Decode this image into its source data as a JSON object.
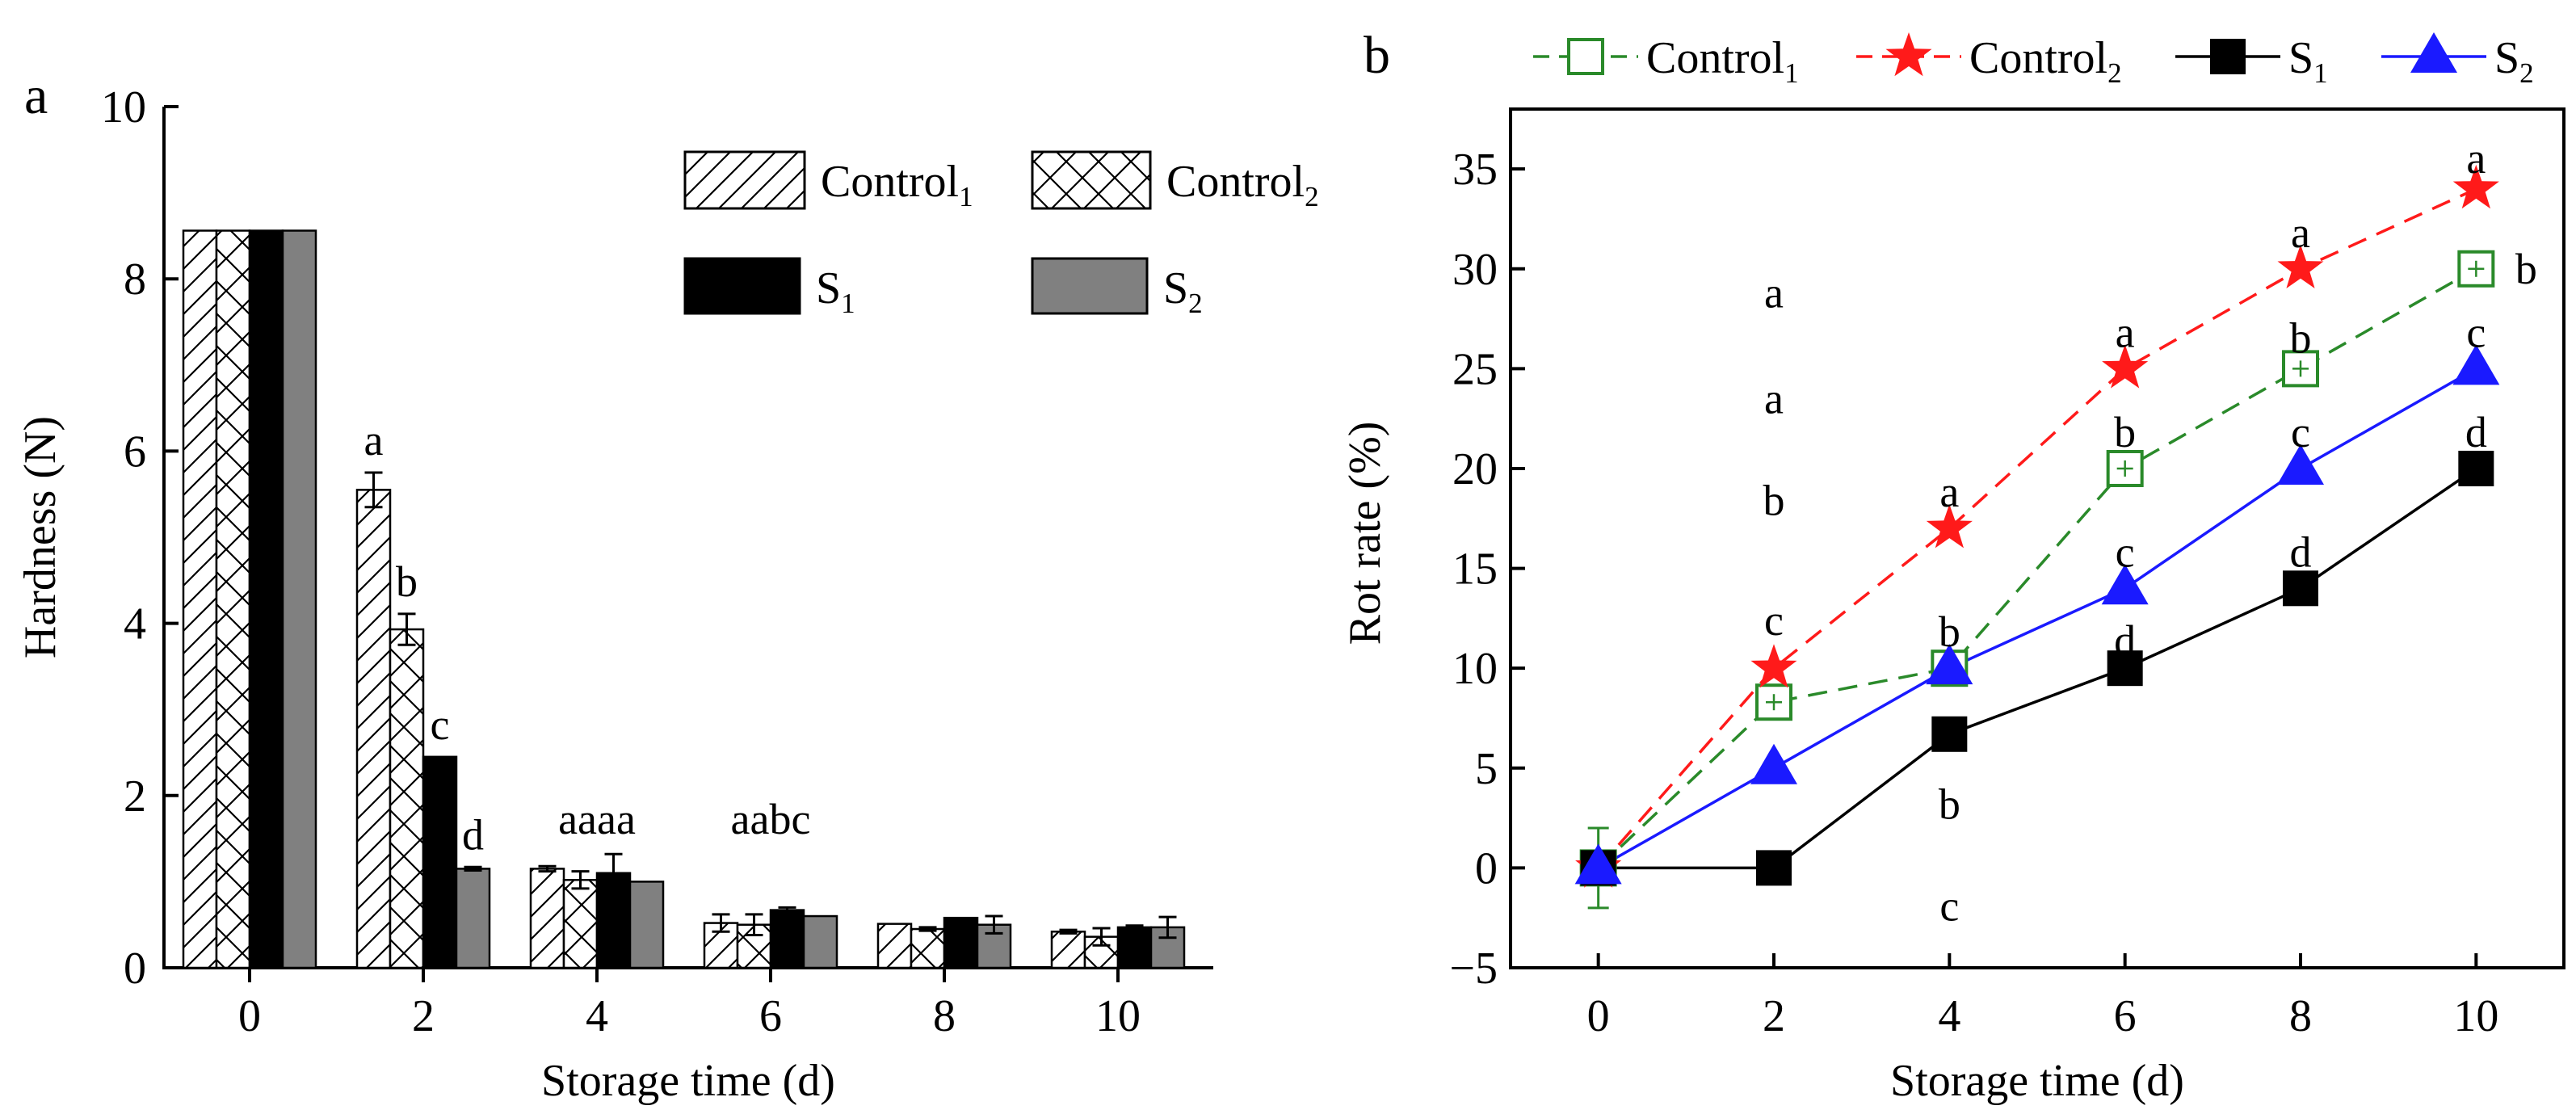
{
  "colors": {
    "control1": "#2a8a2a",
    "control2": "#ff1a1a",
    "s1": "#000000",
    "s2": "#1a1aff",
    "s2_bar": "#808080"
  },
  "chart_data": [
    {
      "type": "bar",
      "panel_label": "a",
      "xlabel": "Storage time (d)",
      "ylabel": "Hardness (N)",
      "ylim": [
        0,
        10
      ],
      "yticks": [
        "0",
        "2",
        "4",
        "6",
        "8",
        "10"
      ],
      "categories": [
        "0",
        "2",
        "4",
        "6",
        "8",
        "10"
      ],
      "legend_position": "top-right",
      "series": [
        {
          "name": "Control",
          "sub": "1",
          "key": "control1",
          "pattern": "hatch",
          "values": [
            8.56,
            5.55,
            1.15,
            0.52,
            0.51,
            0.42
          ],
          "errors": [
            0.0,
            0.2,
            0.03,
            0.1,
            0.0,
            0.02
          ],
          "letters": [
            "",
            "a",
            "",
            "",
            "",
            ""
          ]
        },
        {
          "name": "Control",
          "sub": "2",
          "key": "control2",
          "pattern": "cross",
          "values": [
            8.56,
            3.93,
            1.02,
            0.5,
            0.45,
            0.36
          ],
          "errors": [
            0.0,
            0.18,
            0.1,
            0.12,
            0.02,
            0.1
          ],
          "letters": [
            "",
            "b",
            "",
            "",
            "",
            ""
          ]
        },
        {
          "name": "S",
          "sub": "1",
          "key": "s1",
          "pattern": "solid-black",
          "values": [
            8.56,
            2.45,
            1.1,
            0.67,
            0.58,
            0.47
          ],
          "errors": [
            0.0,
            0.0,
            0.22,
            0.03,
            0.0,
            0.02
          ],
          "letters": [
            "",
            "c",
            "",
            "",
            "",
            ""
          ]
        },
        {
          "name": "S",
          "sub": "2",
          "key": "s2_bar",
          "pattern": "solid-gray",
          "values": [
            8.56,
            1.15,
            1.0,
            0.6,
            0.5,
            0.47
          ],
          "errors": [
            0.0,
            0.02,
            0.0,
            0.0,
            0.1,
            0.12
          ],
          "letters": [
            "",
            "d",
            "",
            "",
            "",
            ""
          ]
        }
      ],
      "group_annotations": [
        {
          "category": "4",
          "text": "aaaa"
        },
        {
          "category": "6",
          "text": "aabc"
        }
      ]
    },
    {
      "type": "line",
      "panel_label": "b",
      "xlabel": "Storage time (d)",
      "ylabel": "Rot rate (%)",
      "xlim": [
        -1,
        11
      ],
      "ylim": [
        -5,
        38
      ],
      "xticks": [
        0,
        2,
        4,
        6,
        8,
        10
      ],
      "yticks": [
        -5,
        0,
        5,
        10,
        15,
        20,
        25,
        30,
        35
      ],
      "ytick_labels": [
        "−5",
        "0",
        "5",
        "10",
        "15",
        "20",
        "25",
        "30",
        "35"
      ],
      "legend_position": "top",
      "x": [
        0,
        2,
        4,
        6,
        8,
        10
      ],
      "series": [
        {
          "name": "Control",
          "sub": "1",
          "key": "control1",
          "marker": "open-square",
          "dash": "dashed",
          "values": [
            0,
            8.3,
            10,
            20,
            25,
            30
          ]
        },
        {
          "name": "Control",
          "sub": "2",
          "key": "control2",
          "marker": "star",
          "dash": "dashed",
          "values": [
            0,
            10,
            17,
            25,
            30,
            34
          ]
        },
        {
          "name": "S",
          "sub": "1",
          "key": "s1",
          "marker": "filled-square",
          "dash": "solid",
          "values": [
            0,
            0,
            6.7,
            10,
            14,
            20
          ]
        },
        {
          "name": "S",
          "sub": "2",
          "key": "s2",
          "marker": "triangle",
          "dash": "solid",
          "values": [
            0,
            5,
            10,
            14,
            20,
            25
          ]
        }
      ],
      "error_bars": [
        {
          "x": 0,
          "y": 0,
          "err": 2
        }
      ],
      "annotations": [
        {
          "x": 2,
          "y": 28.8,
          "text": "a"
        },
        {
          "x": 2,
          "y": 23.5,
          "text": "a"
        },
        {
          "x": 2,
          "y": 18.4,
          "text": "b"
        },
        {
          "x": 2,
          "y": 12.4,
          "text": "c"
        },
        {
          "x": 4,
          "y": 17.0,
          "text": "a",
          "dy": -45
        },
        {
          "x": 4,
          "y": 10.0,
          "text": "b",
          "dy": -45
        },
        {
          "x": 4,
          "y": 3.2,
          "text": "b"
        },
        {
          "x": 4,
          "y": -1.9,
          "text": "c"
        },
        {
          "x": 6,
          "y": 25.0,
          "text": "a",
          "dy": -45
        },
        {
          "x": 6,
          "y": 20.0,
          "text": "b",
          "dy": -45
        },
        {
          "x": 6,
          "y": 14.0,
          "text": "c",
          "dy": -45
        },
        {
          "x": 6,
          "y": 10.0,
          "text": "d",
          "dy": -34
        },
        {
          "x": 8,
          "y": 30.0,
          "text": "a",
          "dy": -45
        },
        {
          "x": 8,
          "y": 25.0,
          "text": "b",
          "dy": -38
        },
        {
          "x": 8,
          "y": 20.0,
          "text": "c",
          "dy": -45
        },
        {
          "x": 8,
          "y": 14.0,
          "text": "d",
          "dy": -45
        },
        {
          "x": 10,
          "y": 34.0,
          "text": "a",
          "dy": -38
        },
        {
          "x": 10,
          "y": 30.0,
          "text": "b",
          "dx": 62
        },
        {
          "x": 10,
          "y": 25.0,
          "text": "c",
          "dy": -45
        },
        {
          "x": 10,
          "y": 20.0,
          "text": "d",
          "dy": -45
        }
      ]
    }
  ]
}
